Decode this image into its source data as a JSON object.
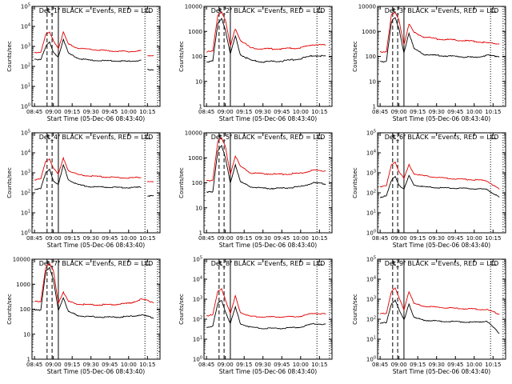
{
  "colors": {
    "events": "#000000",
    "lld": "#e00000",
    "background": "#ffffff"
  },
  "x_ticks": [
    "08:45",
    "09:00",
    "09:15",
    "09:30",
    "09:45",
    "10:00",
    "10:15"
  ],
  "x_label": "Start Time (05-Dec-06 08:43:40)",
  "y_label": "Counts/sec",
  "flare_markers": {
    "dashed": [
      "08:55",
      "08:59"
    ],
    "solid": [
      "09:04"
    ],
    "dotted": [
      "10:13",
      "10:23"
    ]
  },
  "chart_data": [
    {
      "type": "line",
      "title": "Det_1f BLACK = Events, RED = LLD",
      "xlabel": "Start Time (05-Dec-06 08:43:40)",
      "ylabel": "Counts/sec",
      "x_range": [
        "08:43",
        "10:25"
      ],
      "yscale": "log",
      "ylim": [
        1,
        100000
      ],
      "y_tick_labels": [
        "10^0",
        "10^1",
        "10^2",
        "10^3",
        "10^4",
        "10^5"
      ],
      "series": [
        {
          "name": "BLACK = Events",
          "x": [
            "08:45",
            "08:50",
            "08:54",
            "08:57",
            "09:00",
            "09:04",
            "09:08",
            "09:12",
            "09:20",
            "09:30",
            "09:45",
            "10:00",
            "10:10",
            "10:13",
            "10:15",
            "10:20"
          ],
          "y": [
            220,
            230,
            1000,
            1600,
            500,
            300,
            2300,
            450,
            250,
            200,
            190,
            180,
            200,
            null,
            70,
            70
          ]
        },
        {
          "name": "RED = LLD",
          "x": [
            "08:45",
            "08:50",
            "08:54",
            "08:57",
            "09:00",
            "09:04",
            "09:08",
            "09:12",
            "09:20",
            "09:30",
            "09:45",
            "10:00",
            "10:10",
            "10:13",
            "10:15",
            "10:20"
          ],
          "y": [
            500,
            520,
            4000,
            5000,
            2000,
            800,
            5000,
            1300,
            800,
            700,
            600,
            550,
            600,
            null,
            350,
            350
          ]
        }
      ]
    },
    {
      "type": "line",
      "title": "Det_2f BLACK = Events, RED = LLD",
      "xlabel": "Start Time (05-Dec-06 08:43:40)",
      "ylabel": "Counts/sec",
      "x_range": [
        "08:43",
        "10:25"
      ],
      "yscale": "log",
      "ylim": [
        1,
        10000
      ],
      "y_tick_labels": [
        "1",
        "10",
        "100",
        "1000",
        "10000"
      ],
      "series": [
        {
          "name": "BLACK = Events",
          "x": [
            "08:45",
            "08:50",
            "08:54",
            "08:57",
            "09:00",
            "09:04",
            "09:08",
            "09:12",
            "09:20",
            "09:30",
            "09:45",
            "10:00",
            "10:10",
            "10:20"
          ],
          "y": [
            60,
            65,
            2000,
            3500,
            1200,
            120,
            650,
            120,
            70,
            60,
            65,
            80,
            110,
            100
          ]
        },
        {
          "name": "RED = LLD",
          "x": [
            "08:45",
            "08:50",
            "08:54",
            "08:57",
            "09:00",
            "09:04",
            "09:08",
            "09:12",
            "09:20",
            "09:30",
            "09:45",
            "10:00",
            "10:10",
            "10:20"
          ],
          "y": [
            150,
            160,
            4500,
            6000,
            3000,
            250,
            1300,
            450,
            220,
            200,
            200,
            220,
            300,
            280
          ]
        }
      ]
    },
    {
      "type": "line",
      "title": "Det_3f BLACK = Events, RED = LLD",
      "xlabel": "Start Time (05-Dec-06 08:43:40)",
      "ylabel": "Counts/sec",
      "x_range": [
        "08:43",
        "10:25"
      ],
      "yscale": "log",
      "ylim": [
        1,
        10000
      ],
      "y_tick_labels": [
        "1",
        "10",
        "100",
        "1000",
        "10000"
      ],
      "series": [
        {
          "name": "BLACK = Events",
          "x": [
            "08:45",
            "08:50",
            "08:54",
            "08:57",
            "09:00",
            "09:04",
            "09:08",
            "09:12",
            "09:20",
            "09:30",
            "09:45",
            "10:00",
            "10:10",
            "10:20"
          ],
          "y": [
            60,
            65,
            2500,
            3500,
            1200,
            140,
            900,
            200,
            120,
            110,
            100,
            90,
            110,
            100
          ]
        },
        {
          "name": "RED = LLD",
          "x": [
            "08:45",
            "08:50",
            "08:54",
            "08:57",
            "09:00",
            "09:04",
            "09:08",
            "09:12",
            "09:20",
            "09:30",
            "09:45",
            "10:00",
            "10:10",
            "10:20"
          ],
          "y": [
            150,
            160,
            4500,
            5500,
            2800,
            300,
            2000,
            900,
            600,
            500,
            450,
            400,
            350,
            320
          ]
        }
      ]
    },
    {
      "type": "line",
      "title": "Det_4f BLACK = Events, RED = LLD",
      "xlabel": "Start Time (05-Dec-06 08:43:40)",
      "ylabel": "Counts/sec",
      "x_range": [
        "08:43",
        "10:25"
      ],
      "yscale": "log",
      "ylim": [
        1,
        100000
      ],
      "y_tick_labels": [
        "10^0",
        "10^1",
        "10^2",
        "10^3",
        "10^4",
        "10^5"
      ],
      "series": [
        {
          "name": "BLACK = Events",
          "x": [
            "08:45",
            "08:50",
            "08:54",
            "08:57",
            "09:00",
            "09:04",
            "09:08",
            "09:12",
            "09:20",
            "09:30",
            "09:45",
            "10:00",
            "10:10",
            "10:13",
            "10:15",
            "10:20"
          ],
          "y": [
            150,
            160,
            1000,
            1600,
            400,
            250,
            2500,
            450,
            250,
            200,
            190,
            180,
            190,
            null,
            70,
            70
          ]
        },
        {
          "name": "RED = LLD",
          "x": [
            "08:45",
            "08:50",
            "08:54",
            "08:57",
            "09:00",
            "09:04",
            "09:08",
            "09:12",
            "09:20",
            "09:30",
            "09:45",
            "10:00",
            "10:10",
            "10:13",
            "10:15",
            "10:20"
          ],
          "y": [
            450,
            480,
            4000,
            5000,
            1800,
            800,
            5500,
            1300,
            800,
            700,
            600,
            550,
            600,
            null,
            350,
            350
          ]
        }
      ]
    },
    {
      "type": "line",
      "title": "Det_5f BLACK = Events, RED = LLD",
      "xlabel": "Start Time (05-Dec-06 08:43:40)",
      "ylabel": "Counts/sec",
      "x_range": [
        "08:43",
        "10:25"
      ],
      "yscale": "log",
      "ylim": [
        1,
        10000
      ],
      "y_tick_labels": [
        "1",
        "10",
        "100",
        "1000",
        "10000"
      ],
      "series": [
        {
          "name": "BLACK = Events",
          "x": [
            "08:45",
            "08:50",
            "08:54",
            "08:57",
            "09:00",
            "09:04",
            "09:08",
            "09:12",
            "09:20",
            "09:30",
            "09:45",
            "10:00",
            "10:10",
            "10:20"
          ],
          "y": [
            40,
            45,
            2000,
            3000,
            1000,
            100,
            550,
            110,
            70,
            60,
            60,
            70,
            100,
            90
          ]
        },
        {
          "name": "RED = LLD",
          "x": [
            "08:45",
            "08:50",
            "08:54",
            "08:57",
            "09:00",
            "09:04",
            "09:08",
            "09:12",
            "09:20",
            "09:30",
            "09:45",
            "10:00",
            "10:10",
            "10:20"
          ],
          "y": [
            120,
            130,
            4500,
            6000,
            2800,
            220,
            1200,
            450,
            250,
            230,
            220,
            240,
            320,
            300
          ]
        }
      ]
    },
    {
      "type": "line",
      "title": "Det_6f BLACK = Events, RED = LLD",
      "xlabel": "Start Time (05-Dec-06 08:43:40)",
      "ylabel": "Counts/sec",
      "x_range": [
        "08:43",
        "10:25"
      ],
      "yscale": "log",
      "ylim": [
        1,
        100000
      ],
      "y_tick_labels": [
        "10^0",
        "10^1",
        "10^2",
        "10^3",
        "10^4",
        "10^5"
      ],
      "series": [
        {
          "name": "BLACK = Events",
          "x": [
            "08:45",
            "08:50",
            "08:54",
            "08:57",
            "09:00",
            "09:04",
            "09:08",
            "09:12",
            "09:20",
            "09:30",
            "09:45",
            "10:00",
            "10:10",
            "10:20"
          ],
          "y": [
            60,
            70,
            400,
            700,
            250,
            150,
            700,
            250,
            200,
            180,
            170,
            160,
            150,
            60
          ]
        },
        {
          "name": "RED = LLD",
          "x": [
            "08:45",
            "08:50",
            "08:54",
            "08:57",
            "09:00",
            "09:04",
            "09:08",
            "09:12",
            "09:20",
            "09:30",
            "09:45",
            "10:00",
            "10:10",
            "10:20"
          ],
          "y": [
            200,
            220,
            2500,
            3500,
            1200,
            500,
            2500,
            900,
            700,
            600,
            500,
            450,
            400,
            150
          ]
        }
      ]
    },
    {
      "type": "line",
      "title": "Det_7f BLACK = Events, RED = LLD",
      "xlabel": "Start Time (05-Dec-06 08:43:40)",
      "ylabel": "Counts/sec",
      "x_range": [
        "08:43",
        "10:25"
      ],
      "yscale": "log",
      "ylim": [
        1,
        10000
      ],
      "y_tick_labels": [
        "1",
        "10",
        "100",
        "1000",
        "10000"
      ],
      "series": [
        {
          "name": "BLACK = Events",
          "x": [
            "08:45",
            "08:50",
            "08:54",
            "08:57",
            "09:00",
            "09:04",
            "09:08",
            "09:12",
            "09:20",
            "09:30",
            "09:45",
            "10:00",
            "10:10",
            "10:20"
          ],
          "y": [
            90,
            95,
            3500,
            4500,
            1500,
            90,
            300,
            80,
            55,
            50,
            48,
            50,
            60,
            45
          ]
        },
        {
          "name": "RED = LLD",
          "x": [
            "08:45",
            "08:50",
            "08:54",
            "08:57",
            "09:00",
            "09:04",
            "09:08",
            "09:12",
            "09:20",
            "09:30",
            "09:45",
            "10:00",
            "10:10",
            "10:20"
          ],
          "y": [
            200,
            210,
            5000,
            6500,
            3500,
            180,
            500,
            200,
            160,
            150,
            150,
            170,
            250,
            190
          ]
        }
      ]
    },
    {
      "type": "line",
      "title": "Det_8f BLACK = Events, RED = LLD",
      "xlabel": "Start Time (05-Dec-06 08:43:40)",
      "ylabel": "Counts/sec",
      "x_range": [
        "08:43",
        "10:25"
      ],
      "yscale": "log",
      "ylim": [
        1,
        100000
      ],
      "y_tick_labels": [
        "10^0",
        "10^1",
        "10^2",
        "10^3",
        "10^4",
        "10^5"
      ],
      "series": [
        {
          "name": "BLACK = Events",
          "x": [
            "08:45",
            "08:50",
            "08:54",
            "08:57",
            "09:00",
            "09:04",
            "09:08",
            "09:12",
            "09:20",
            "09:30",
            "09:45",
            "10:00",
            "10:10",
            "10:20"
          ],
          "y": [
            40,
            45,
            600,
            900,
            250,
            60,
            400,
            60,
            40,
            35,
            35,
            40,
            60,
            55
          ]
        },
        {
          "name": "RED = LLD",
          "x": [
            "08:45",
            "08:50",
            "08:54",
            "08:57",
            "09:00",
            "09:04",
            "09:08",
            "09:12",
            "09:20",
            "09:30",
            "09:45",
            "10:00",
            "10:10",
            "10:20"
          ],
          "y": [
            150,
            160,
            2500,
            3500,
            1000,
            180,
            1400,
            220,
            140,
            130,
            130,
            140,
            200,
            180
          ]
        }
      ]
    },
    {
      "type": "line",
      "title": "Det_9f BLACK = Events, RED = LLD",
      "xlabel": "Start Time (05-Dec-06 08:43:40)",
      "ylabel": "Counts/sec",
      "x_range": [
        "08:43",
        "10:25"
      ],
      "yscale": "log",
      "ylim": [
        1,
        100000
      ],
      "y_tick_labels": [
        "10^0",
        "10^1",
        "10^2",
        "10^3",
        "10^4",
        "10^5"
      ],
      "series": [
        {
          "name": "BLACK = Events",
          "x": [
            "08:45",
            "08:50",
            "08:54",
            "08:57",
            "09:00",
            "09:04",
            "09:08",
            "09:12",
            "09:20",
            "09:30",
            "09:45",
            "10:00",
            "10:10",
            "10:20"
          ],
          "y": [
            60,
            70,
            600,
            900,
            300,
            90,
            600,
            120,
            90,
            80,
            75,
            70,
            80,
            20
          ]
        },
        {
          "name": "RED = LLD",
          "x": [
            "08:45",
            "08:50",
            "08:54",
            "08:57",
            "09:00",
            "09:04",
            "09:08",
            "09:12",
            "09:20",
            "09:30",
            "09:45",
            "10:00",
            "10:10",
            "10:20"
          ],
          "y": [
            180,
            200,
            2500,
            3500,
            1200,
            300,
            2500,
            600,
            450,
            400,
            350,
            320,
            300,
            180
          ]
        }
      ]
    }
  ]
}
